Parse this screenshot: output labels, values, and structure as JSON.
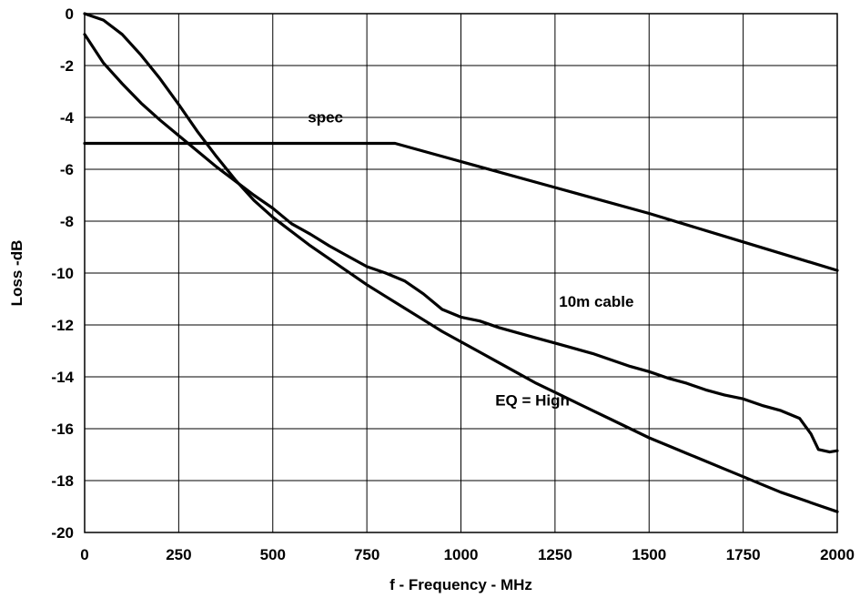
{
  "chart_data": {
    "type": "line",
    "title": "",
    "xlabel": "f - Frequency - MHz",
    "ylabel": "Loss -dB",
    "xlim": [
      0,
      2000
    ],
    "ylim": [
      -20,
      0
    ],
    "xticks": [
      0,
      250,
      500,
      750,
      1000,
      1250,
      1500,
      1750,
      2000
    ],
    "yticks": [
      0,
      -2,
      -4,
      -6,
      -8,
      -10,
      -12,
      -14,
      -16,
      -18,
      -20
    ],
    "xtick_labels": [
      "0",
      "250",
      "500",
      "750",
      "1000",
      "1250",
      "1500",
      "1750",
      "2000"
    ],
    "ytick_labels": [
      "0",
      "-2",
      "-4",
      "-6",
      "-8",
      "-10",
      "-12",
      "-14",
      "-16",
      "-18",
      "-20"
    ],
    "grid": true,
    "legend": "none",
    "series": [
      {
        "name": "spec",
        "x": [
          0,
          825,
          1000,
          1250,
          1500,
          1750,
          2000
        ],
        "y": [
          -5,
          -5,
          -5.7,
          -6.7,
          -7.7,
          -8.8,
          -9.9
        ]
      },
      {
        "name": "10m cable",
        "x": [
          0,
          50,
          100,
          150,
          200,
          250,
          300,
          350,
          400,
          450,
          500,
          550,
          600,
          650,
          700,
          750,
          800,
          850,
          900,
          950,
          1000,
          1050,
          1100,
          1150,
          1200,
          1250,
          1300,
          1350,
          1400,
          1450,
          1500,
          1550,
          1600,
          1650,
          1700,
          1750,
          1800,
          1850,
          1900,
          1930,
          1950,
          1980,
          2000
        ],
        "y": [
          -0.8,
          -1.9,
          -2.7,
          -3.45,
          -4.1,
          -4.7,
          -5.3,
          -5.9,
          -6.45,
          -7.0,
          -7.5,
          -8.1,
          -8.5,
          -8.95,
          -9.35,
          -9.75,
          -10.0,
          -10.3,
          -10.8,
          -11.4,
          -11.7,
          -11.85,
          -12.1,
          -12.3,
          -12.5,
          -12.7,
          -12.9,
          -13.1,
          -13.35,
          -13.6,
          -13.8,
          -14.05,
          -14.25,
          -14.5,
          -14.7,
          -14.85,
          -15.1,
          -15.3,
          -15.6,
          -16.2,
          -16.8,
          -16.9,
          -16.85
        ]
      },
      {
        "name": "EQ = High",
        "x": [
          0,
          50,
          100,
          150,
          200,
          250,
          300,
          350,
          400,
          450,
          500,
          550,
          600,
          650,
          700,
          750,
          800,
          850,
          900,
          950,
          1000,
          1050,
          1100,
          1150,
          1200,
          1250,
          1300,
          1350,
          1400,
          1450,
          1500,
          1550,
          1600,
          1650,
          1700,
          1750,
          1800,
          1850,
          1900,
          1950,
          2000
        ],
        "y": [
          0,
          -0.25,
          -0.8,
          -1.6,
          -2.5,
          -3.5,
          -4.55,
          -5.5,
          -6.4,
          -7.2,
          -7.85,
          -8.4,
          -8.95,
          -9.45,
          -9.95,
          -10.45,
          -10.9,
          -11.35,
          -11.8,
          -12.25,
          -12.65,
          -13.05,
          -13.45,
          -13.85,
          -14.25,
          -14.6,
          -14.95,
          -15.3,
          -15.65,
          -16.0,
          -16.35,
          -16.65,
          -16.95,
          -17.25,
          -17.55,
          -17.85,
          -18.15,
          -18.45,
          -18.7,
          -18.95,
          -19.2
        ]
      }
    ],
    "annotations": [
      {
        "text": "spec",
        "x": 640,
        "y": -4.2
      },
      {
        "text": "10m cable",
        "x": 1360,
        "y": -11.3
      },
      {
        "text": "EQ = High",
        "x": 1190,
        "y": -15.1
      }
    ]
  }
}
